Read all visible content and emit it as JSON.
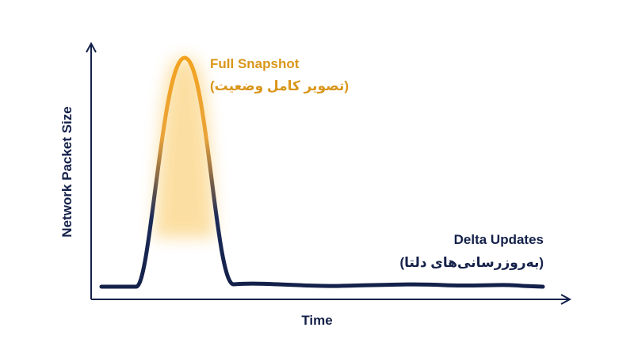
{
  "axes": {
    "y_label": "Network Packet Size",
    "x_label": "Time"
  },
  "annotations": {
    "peak": {
      "title": "Full Snapshot",
      "subtitle": "(تصویر کامل وضعیت)"
    },
    "baseline": {
      "title": "Delta Updates",
      "subtitle": "(به‌روزرسانی‌های دلتا)"
    }
  }
}
